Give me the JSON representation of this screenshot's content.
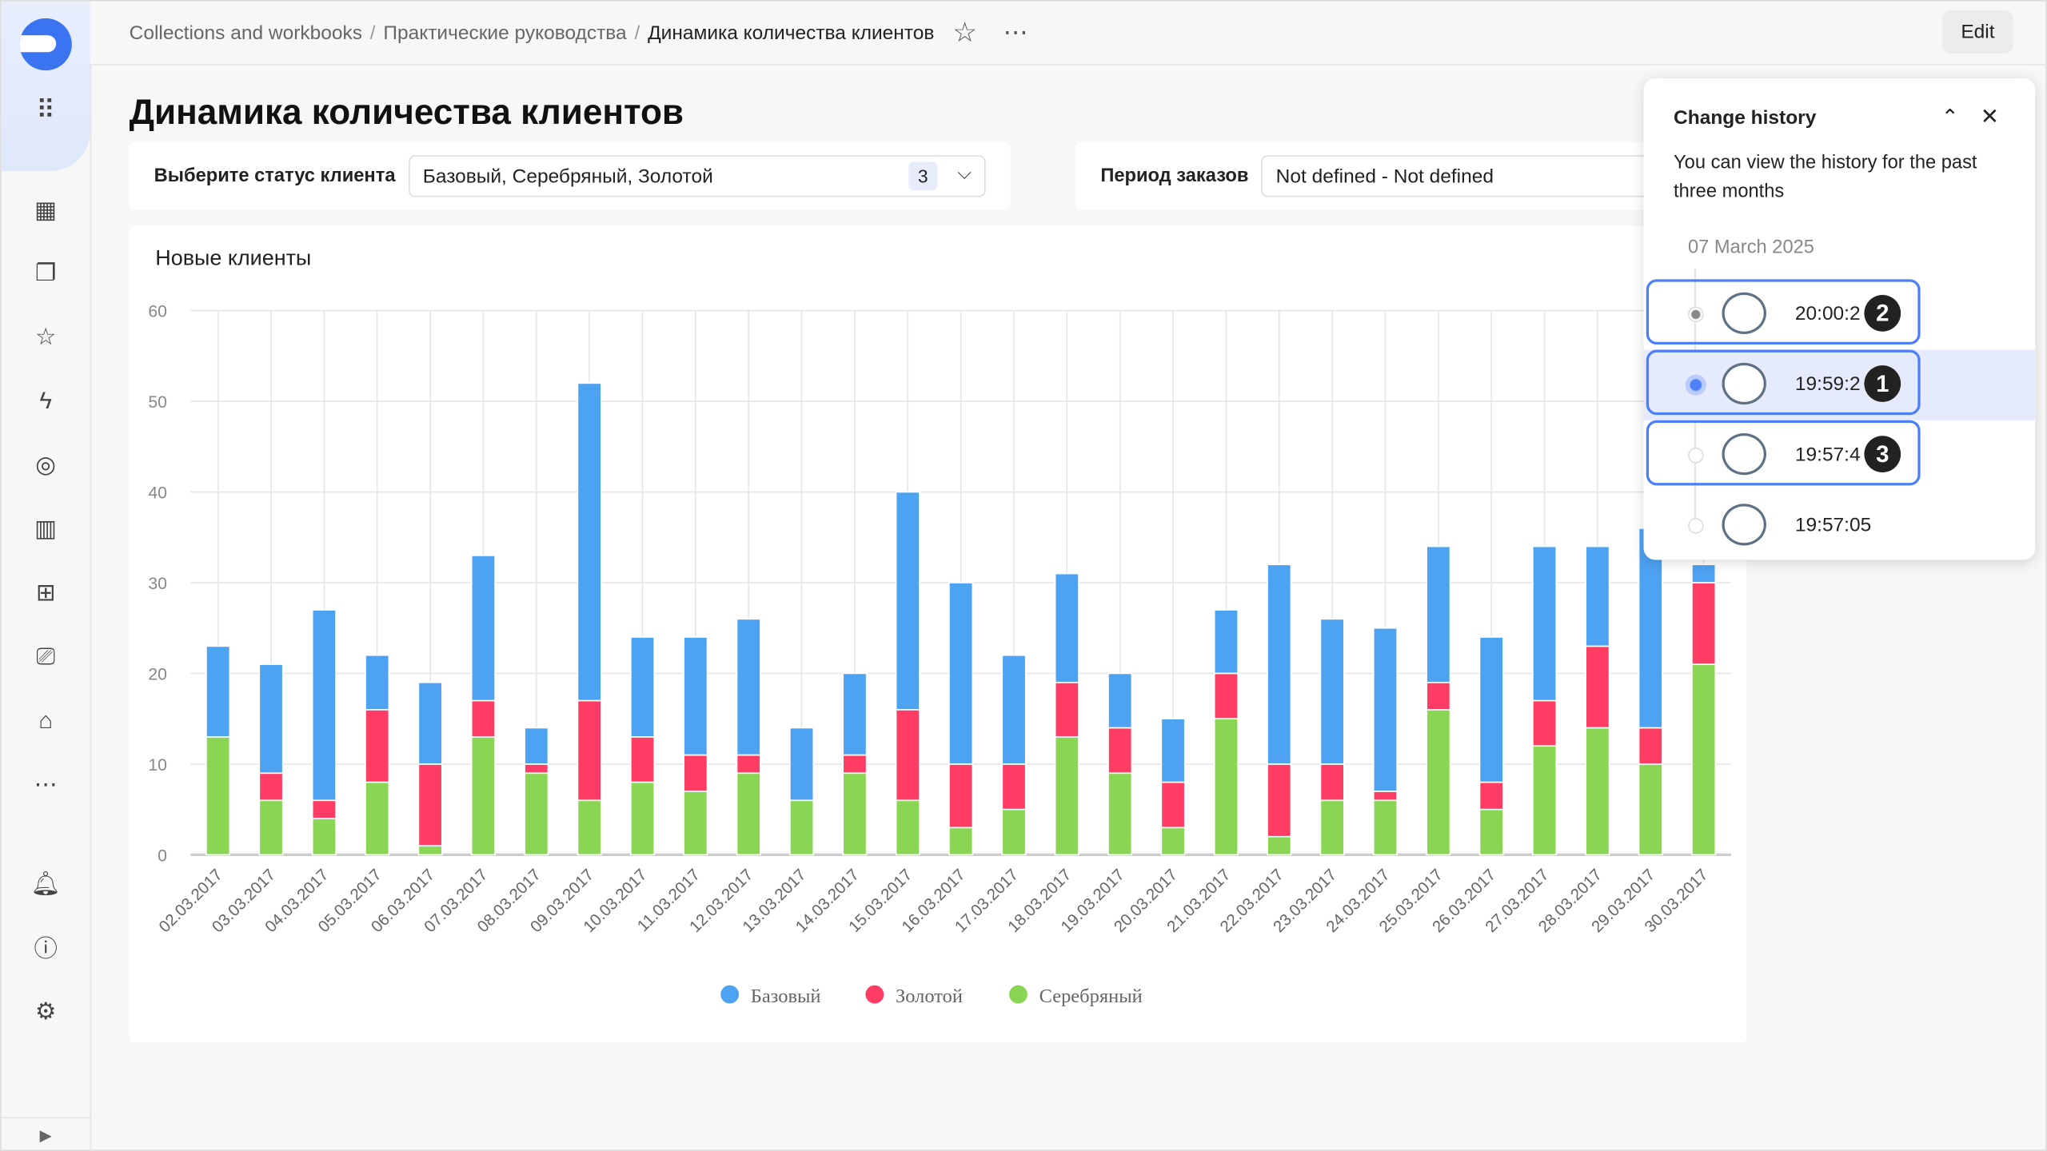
{
  "breadcrumb": [
    "Collections and workbooks",
    "Практические руководства",
    "Динамика количества клиентов"
  ],
  "header": {
    "edit_label": "Edit"
  },
  "page_title": "Динамика количества клиентов",
  "filters": {
    "status": {
      "label": "Выберите статус клиента",
      "value": "Базовый, Серебряный, Золотой",
      "count": "3"
    },
    "period": {
      "label": "Период заказов",
      "value": "Not defined - Not defined"
    }
  },
  "history": {
    "title": "Change history",
    "description": "You can view the history for the past three months",
    "date": "07 March 2025",
    "entries": [
      {
        "time": "20:00:2",
        "badge": "2",
        "state": "current",
        "outlined": true
      },
      {
        "time": "19:59:2",
        "badge": "1",
        "state": "selected",
        "outlined": true
      },
      {
        "time": "19:57:4",
        "badge": "3",
        "state": "normal",
        "outlined": true
      },
      {
        "time": "19:57:05",
        "badge": "",
        "state": "normal",
        "outlined": false
      }
    ],
    "accent": "#4f7ff7"
  },
  "chart_data": {
    "type": "bar",
    "stacked": true,
    "title": "Новые клиенты",
    "ylim": [
      0,
      60
    ],
    "yticks": [
      "0",
      "10",
      "20",
      "30",
      "40",
      "50",
      "60"
    ],
    "grid": true,
    "legend_position": "bottom",
    "categories": [
      "02.03.2017",
      "03.03.2017",
      "04.03.2017",
      "05.03.2017",
      "06.03.2017",
      "07.03.2017",
      "08.03.2017",
      "09.03.2017",
      "10.03.2017",
      "11.03.2017",
      "12.03.2017",
      "13.03.2017",
      "14.03.2017",
      "15.03.2017",
      "16.03.2017",
      "17.03.2017",
      "18.03.2017",
      "19.03.2017",
      "20.03.2017",
      "21.03.2017",
      "22.03.2017",
      "23.03.2017",
      "24.03.2017",
      "25.03.2017",
      "26.03.2017",
      "27.03.2017",
      "28.03.2017",
      "29.03.2017",
      "30.03.2017"
    ],
    "series": [
      {
        "name": "Серебряный",
        "color": "#8ad554",
        "values": [
          13,
          6,
          4,
          8,
          1,
          13,
          9,
          6,
          8,
          7,
          9,
          6,
          9,
          6,
          3,
          5,
          13,
          9,
          3,
          15,
          2,
          6,
          6,
          16,
          5,
          12,
          14,
          10,
          21
        ]
      },
      {
        "name": "Золотой",
        "color": "#ff3d64",
        "values": [
          0,
          3,
          2,
          8,
          9,
          4,
          1,
          11,
          5,
          4,
          2,
          0,
          2,
          10,
          7,
          5,
          6,
          5,
          5,
          5,
          8,
          4,
          1,
          3,
          3,
          5,
          9,
          4,
          9
        ]
      },
      {
        "name": "Базовый",
        "color": "#4da2f1",
        "values": [
          10,
          12,
          21,
          6,
          9,
          16,
          4,
          35,
          11,
          13,
          15,
          8,
          9,
          24,
          20,
          12,
          12,
          6,
          7,
          7,
          22,
          16,
          18,
          15,
          16,
          17,
          11,
          22,
          2
        ]
      }
    ],
    "legend": [
      "Базовый",
      "Золотой",
      "Серебряный"
    ]
  }
}
